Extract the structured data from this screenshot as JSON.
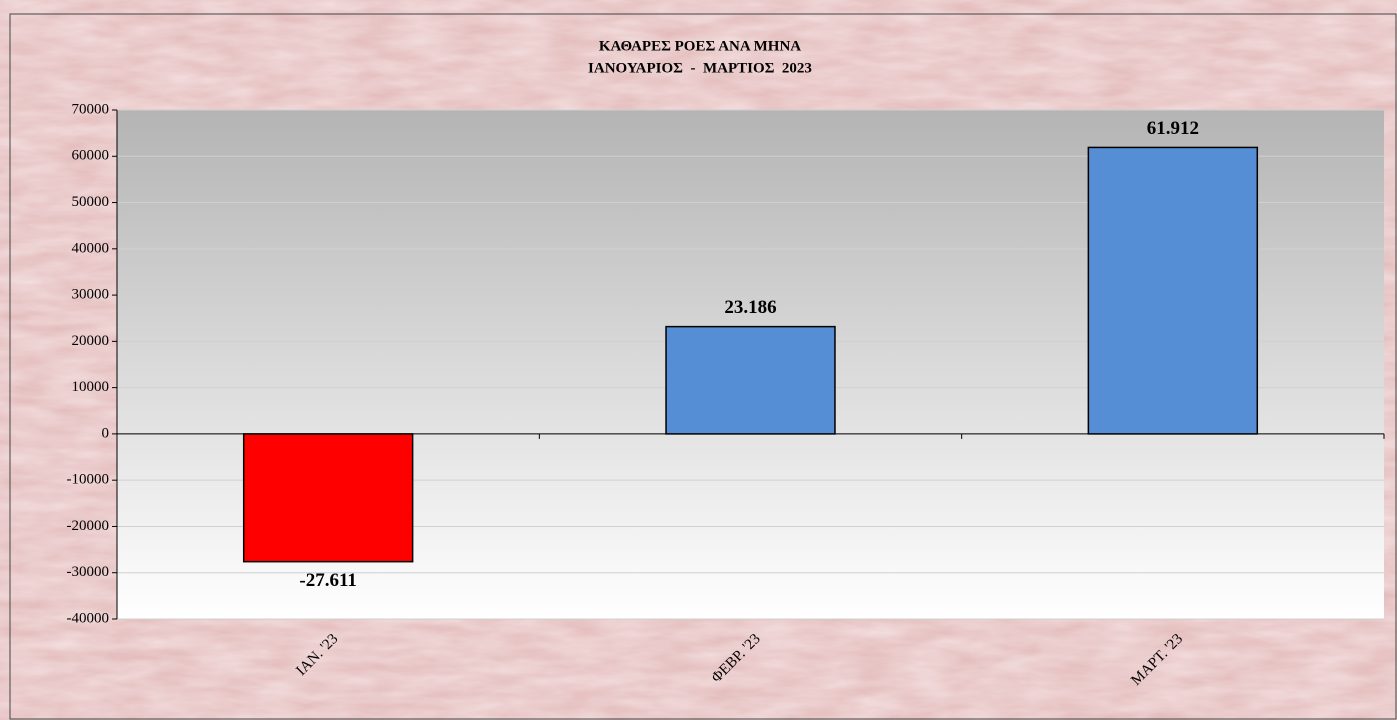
{
  "chart_data": {
    "type": "bar",
    "title": "ΚΑΘΑΡΕΣ ΡΟΕΣ ΑΝΑ ΜΗΝΑ",
    "subtitle": "ΙΑΝΟΥΑΡΙΟΣ  -  ΜΑΡΤΙΟΣ  2023",
    "categories": [
      "ΙΑΝ. '23",
      "ΦΕΒΡ. '23",
      "ΜΑΡΤ. '23"
    ],
    "values": [
      -27611,
      23186,
      61912
    ],
    "value_labels": [
      "-27.611",
      "23.186",
      "61.912"
    ],
    "colors": [
      "#ff0000",
      "#558ed5",
      "#558ed5"
    ],
    "ylim": [
      -40000,
      70000
    ],
    "yticks": [
      -40000,
      -30000,
      -20000,
      -10000,
      0,
      10000,
      20000,
      30000,
      40000,
      50000,
      60000,
      70000
    ],
    "grid": true
  }
}
